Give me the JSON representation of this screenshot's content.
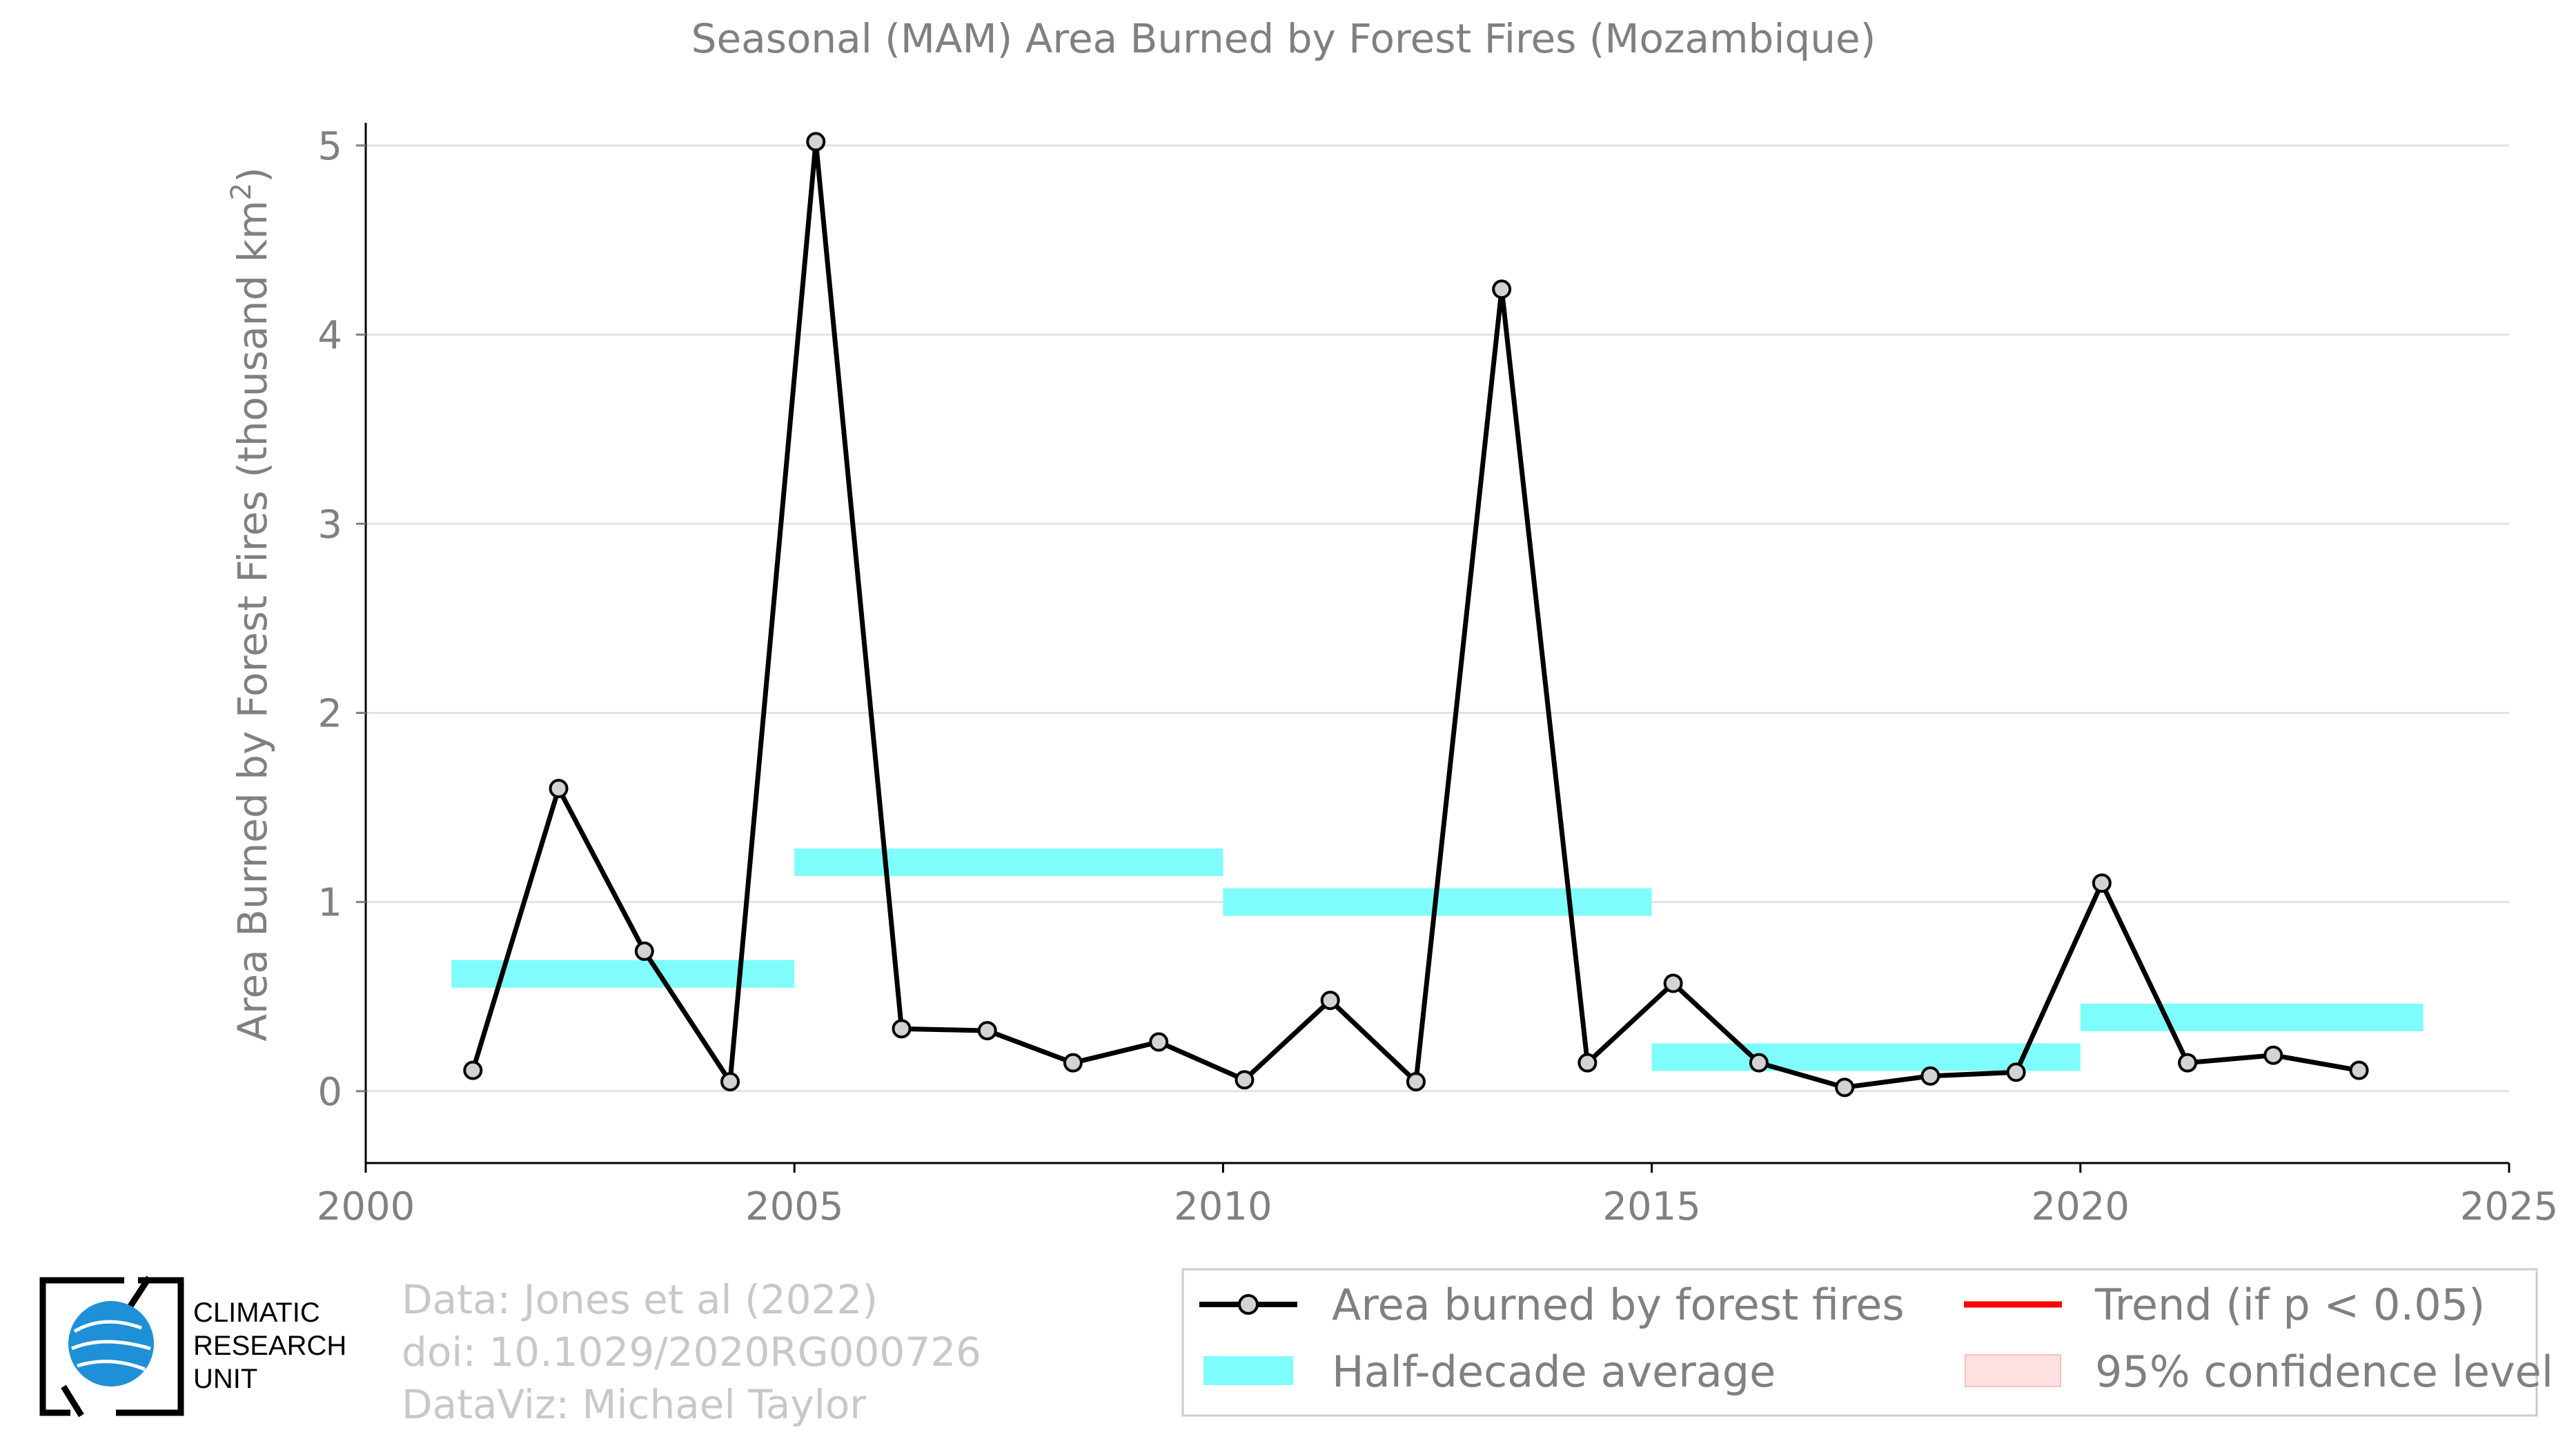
{
  "chart_data": {
    "type": "line",
    "title": "Seasonal (MAM) Area Burned by Forest Fires (Mozambique)",
    "ylabel_main": "Area Burned by Forest Fires (thousand km",
    "ylabel_sup": "2",
    "ylabel_close": ")",
    "xlim": [
      2000,
      2025
    ],
    "ylim": [
      -0.38,
      5.12
    ],
    "x_ticks": [
      2000,
      2005,
      2010,
      2015,
      2020,
      2025
    ],
    "x_tick_labels": [
      "2000",
      "2005",
      "2010",
      "2015",
      "2020",
      "2025"
    ],
    "y_ticks": [
      0,
      1,
      2,
      3,
      4,
      5
    ],
    "y_tick_labels": [
      "0",
      "1",
      "2",
      "3",
      "4",
      "5"
    ],
    "grid": "horizontal",
    "series": [
      {
        "name": "Area burned by forest fires",
        "color": "#000000",
        "marker_fill": "#d3d3d3",
        "x": [
          2001.25,
          2002.25,
          2003.25,
          2004.25,
          2005.25,
          2006.25,
          2007.25,
          2008.25,
          2009.25,
          2010.25,
          2011.25,
          2012.25,
          2013.25,
          2014.25,
          2015.25,
          2016.25,
          2017.25,
          2018.25,
          2019.25,
          2020.25,
          2021.25,
          2022.25,
          2023.25
        ],
        "values": [
          0.11,
          1.6,
          0.74,
          0.05,
          5.02,
          0.33,
          0.32,
          0.15,
          0.26,
          0.06,
          0.48,
          0.05,
          4.24,
          0.15,
          0.57,
          0.15,
          0.02,
          0.08,
          0.1,
          1.1,
          0.15,
          0.19,
          0.11
        ]
      }
    ],
    "half_decade_average": {
      "name": "Half-decade average",
      "color": "#7ffcfc",
      "segments": [
        {
          "start": 2001,
          "end": 2005,
          "value": 0.62
        },
        {
          "start": 2005,
          "end": 2010,
          "value": 1.21
        },
        {
          "start": 2010,
          "end": 2015,
          "value": 1.0
        },
        {
          "start": 2015,
          "end": 2020,
          "value": 0.18
        },
        {
          "start": 2020,
          "end": 2024,
          "value": 0.39
        }
      ]
    },
    "legend": {
      "placement": "bottom-right",
      "entries": [
        {
          "label": "Area burned by forest fires",
          "kind": "line-marker",
          "color": "#000000"
        },
        {
          "label": "Trend (if p < 0.05)",
          "kind": "line",
          "color": "#ff0000"
        },
        {
          "label": "Half-decade average",
          "kind": "patch",
          "color": "#7ffcfc"
        },
        {
          "label": "95% confidence level",
          "kind": "patch",
          "color": "#fde0e0"
        }
      ]
    }
  },
  "credits": {
    "line1": "Data: Jones et al (2022)",
    "line2": "doi: 10.1029/2020RG000726",
    "line3": "DataViz: Michael Taylor"
  },
  "logo": {
    "line1": "CLIMATIC",
    "line2": "RESEARCH",
    "line3": "UNIT",
    "globe_color": "#1e90d8",
    "icon": "globe-icon"
  }
}
